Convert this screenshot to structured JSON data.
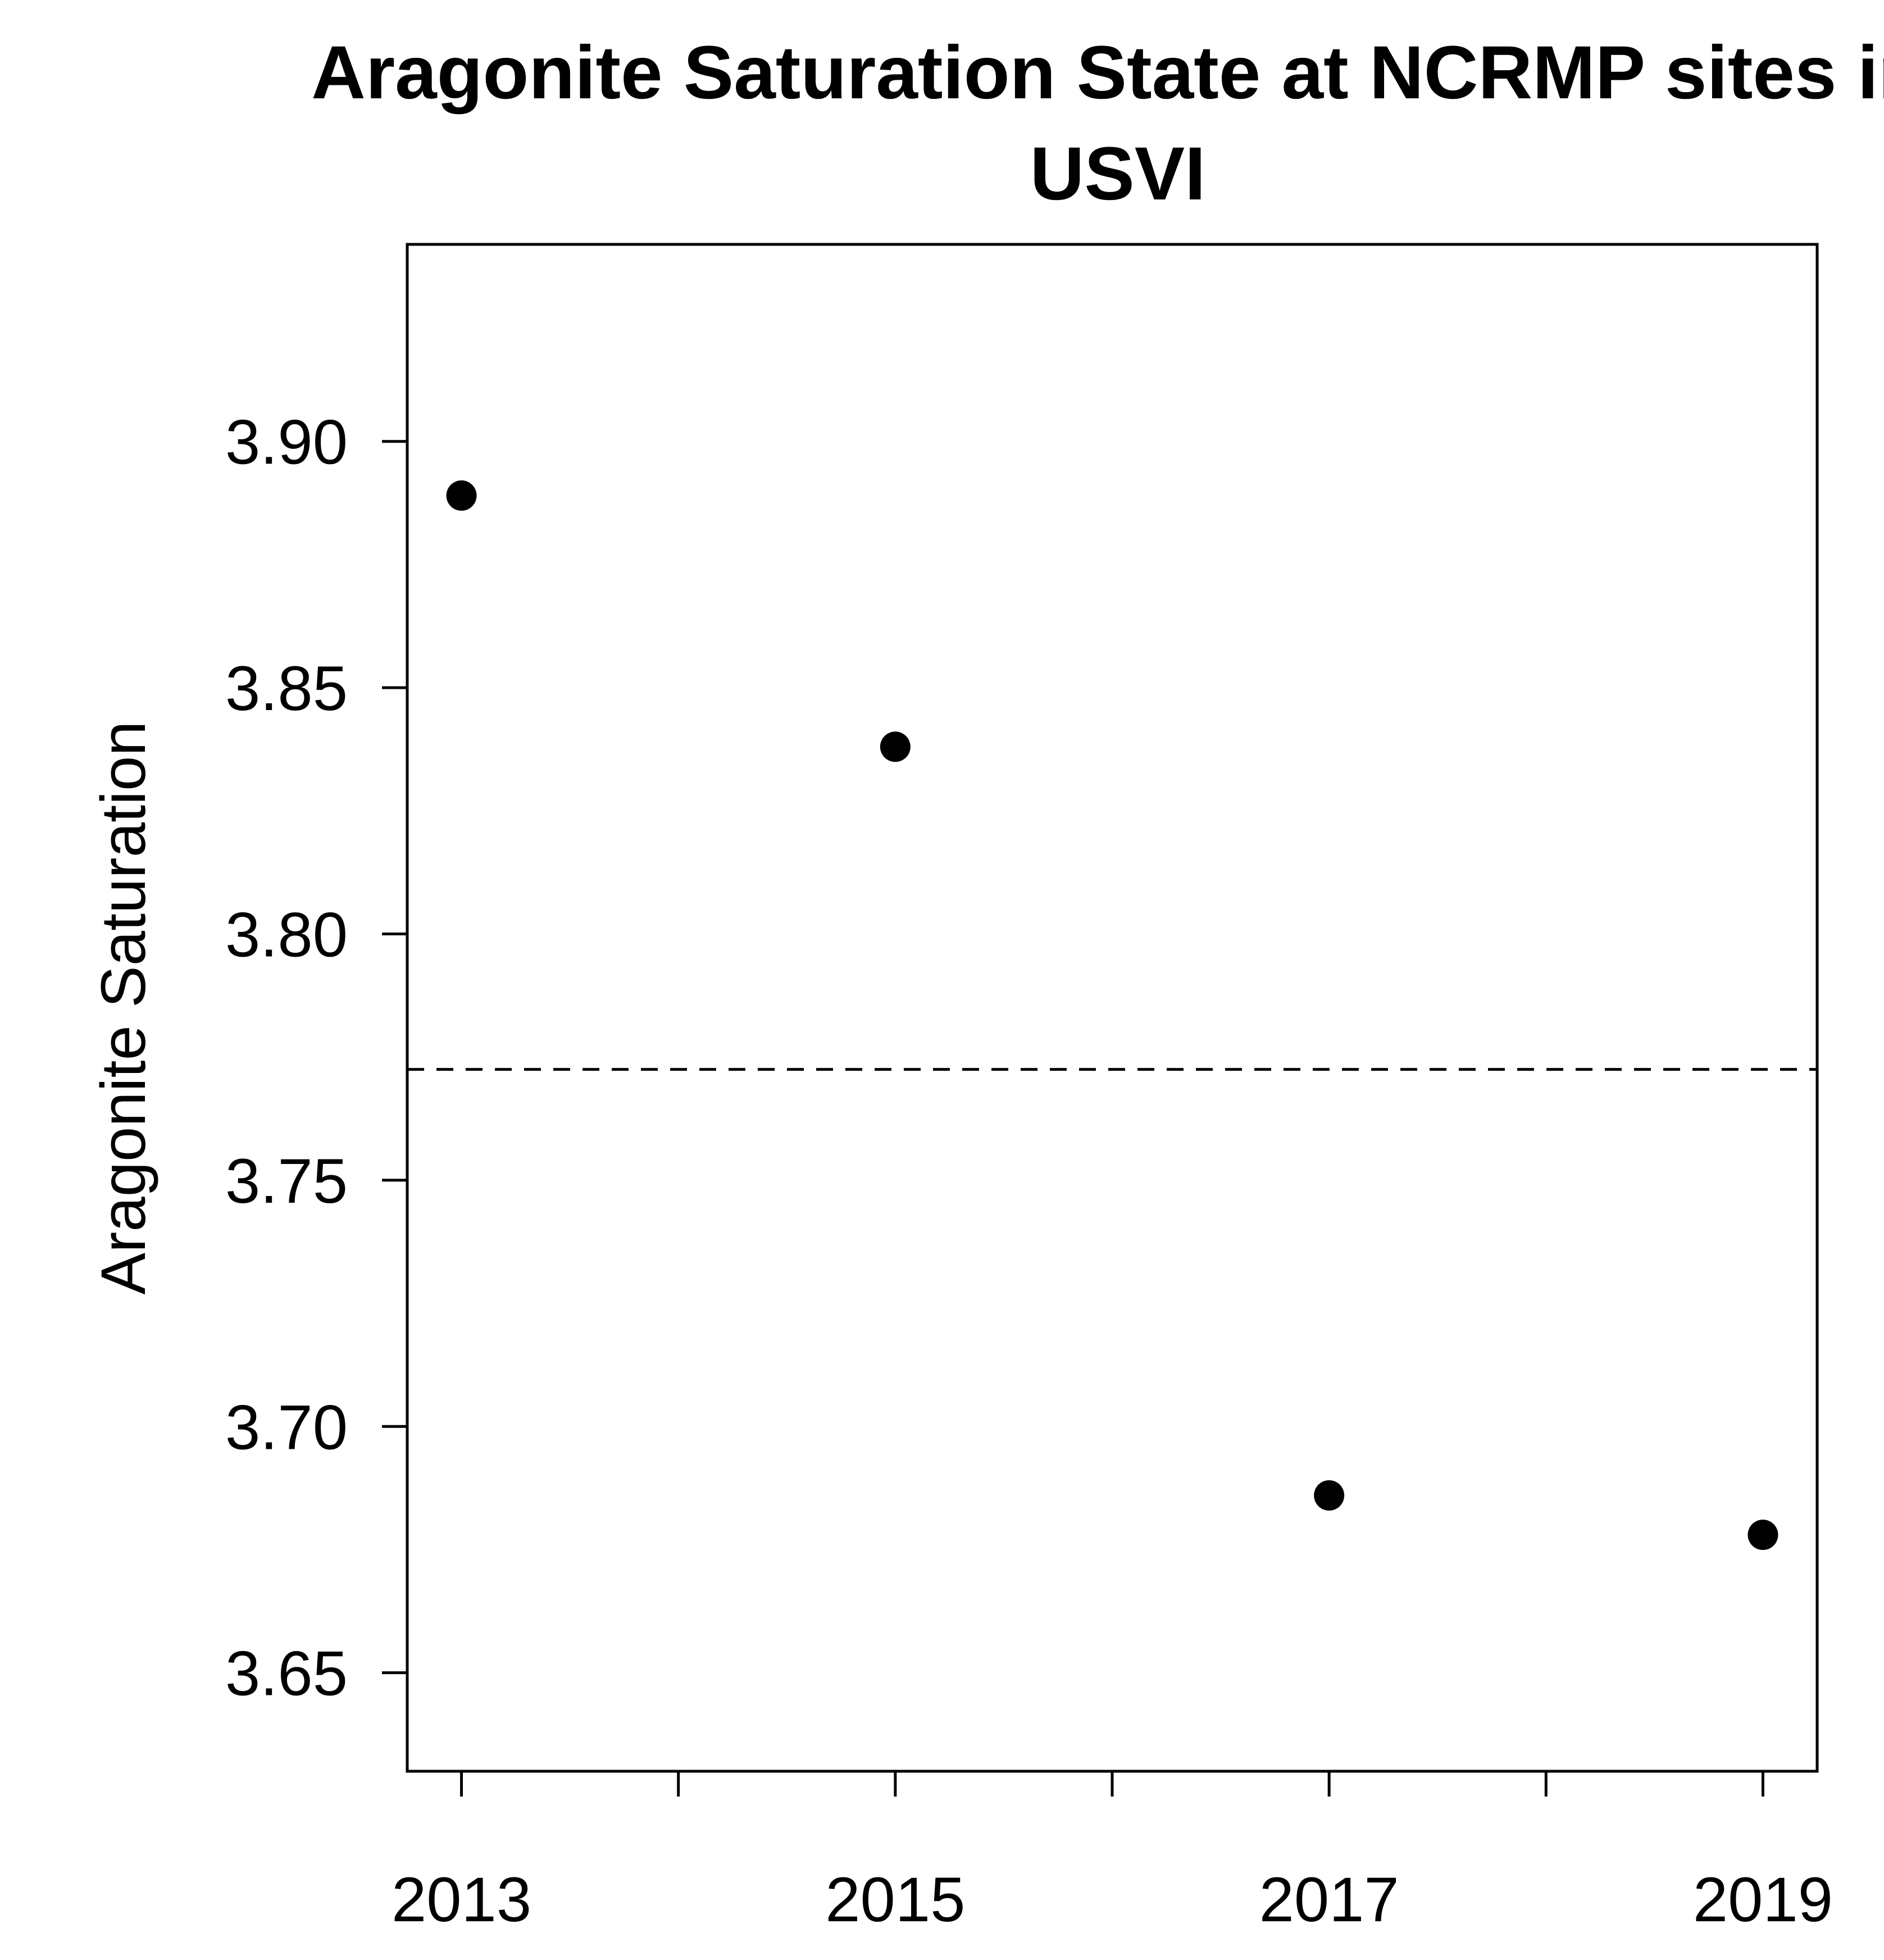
{
  "chart_data": {
    "type": "scatter",
    "title_lines": [
      "Aragonite Saturation State at NCRMP sites in",
      "USVI"
    ],
    "xlabel": "",
    "ylabel": "Aragonite Saturation",
    "x": [
      2013,
      2015,
      2017,
      2019
    ],
    "y": [
      3.889,
      3.838,
      3.686,
      3.678
    ],
    "x_ticks": [
      2013,
      2014,
      2015,
      2016,
      2017,
      2018,
      2019
    ],
    "x_tick_labels": [
      "2013",
      "2015",
      "2017",
      "2019"
    ],
    "x_tick_label_values": [
      2013,
      2015,
      2017,
      2019
    ],
    "y_ticks": [
      3.65,
      3.7,
      3.75,
      3.8,
      3.85,
      3.9
    ],
    "y_tick_labels": [
      "3.65",
      "3.70",
      "3.75",
      "3.80",
      "3.85",
      "3.90"
    ],
    "xlim": [
      2012.75,
      2019.25
    ],
    "ylim": [
      3.63,
      3.94
    ],
    "reference_line": {
      "y": 3.7725,
      "style": "dashed"
    },
    "grid": false,
    "legend": "none",
    "colors": {
      "points": "#000000",
      "axes": "#000000",
      "reference_line": "#000000"
    }
  }
}
